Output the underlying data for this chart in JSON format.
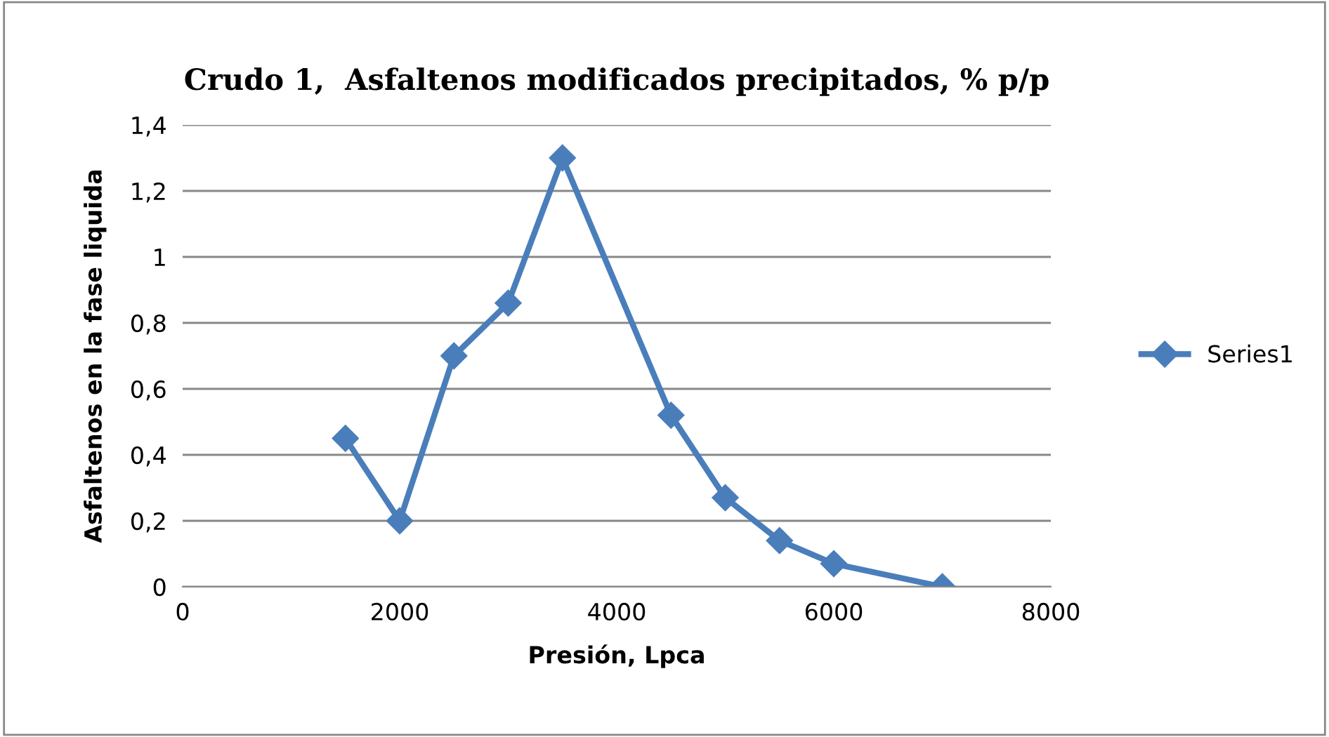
{
  "chart_data": {
    "type": "line",
    "title": "Crudo 1,  Asfaltenos modificados precipitados, % p/p",
    "xlabel": "Presión, Lpca",
    "ylabel": "Asfaltenos en la fase liquida",
    "x": [
      1500,
      2000,
      2500,
      3000,
      3500,
      4500,
      5000,
      5500,
      6000,
      7000
    ],
    "series": [
      {
        "name": "Series1",
        "color": "#4a7ebb",
        "values": [
          0.45,
          0.2,
          0.7,
          0.86,
          1.3,
          0.52,
          0.27,
          0.14,
          0.07,
          0.0
        ]
      }
    ],
    "xlim": [
      0,
      8000
    ],
    "xticks": [
      0,
      2000,
      4000,
      6000,
      8000
    ],
    "ylim": [
      0,
      1.4
    ],
    "yticks": [
      0,
      {
        "value": 0.2,
        "label": "0,2"
      },
      {
        "value": 0.4,
        "label": "0,4"
      },
      {
        "value": 0.6,
        "label": "0,6"
      },
      {
        "value": 0.8,
        "label": "0,8"
      },
      1,
      {
        "value": 1.2,
        "label": "1,2"
      },
      {
        "value": 1.4,
        "label": "1,4"
      }
    ],
    "grid": "y",
    "legend": "right",
    "marker": "diamond",
    "line_style": "solid"
  }
}
